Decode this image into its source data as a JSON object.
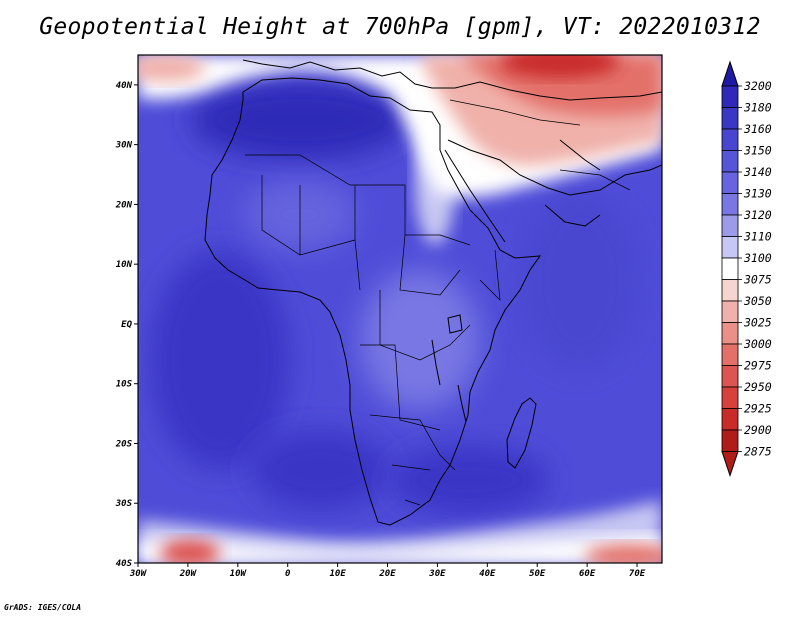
{
  "title": "Geopotential Height at 700hPa [gpm], VT: 2022010312",
  "credit": "GrADS: IGES/COLA",
  "map": {
    "lon_range": [
      -30,
      75
    ],
    "lat_range": [
      -40,
      45
    ],
    "x_ticks": [
      "30W",
      "20W",
      "10W",
      "0",
      "10E",
      "20E",
      "30E",
      "40E",
      "50E",
      "60E",
      "70E"
    ],
    "y_ticks": [
      "40N",
      "30N",
      "20N",
      "10N",
      "EQ",
      "10S",
      "20S",
      "30S",
      "40S"
    ],
    "base_color": "#4f4dd8",
    "land_color": "#6b69e0"
  },
  "colorbar": {
    "levels": [
      "3200",
      "3180",
      "3160",
      "3150",
      "3140",
      "3130",
      "3120",
      "3110",
      "3100",
      "3075",
      "3050",
      "3025",
      "3000",
      "2975",
      "2950",
      "2925",
      "2900",
      "2875"
    ],
    "colors": [
      "#1f1aa6",
      "#2e29b8",
      "#3a36c6",
      "#4846d0",
      "#5654d8",
      "#6664de",
      "#7877e3",
      "#9c9bea",
      "#c7c7f3",
      "#ffffff",
      "#f6d4d0",
      "#f0b1aa",
      "#ea9088",
      "#e3716a",
      "#dd5552",
      "#d6403d",
      "#c92b29",
      "#b01c1a"
    ]
  }
}
